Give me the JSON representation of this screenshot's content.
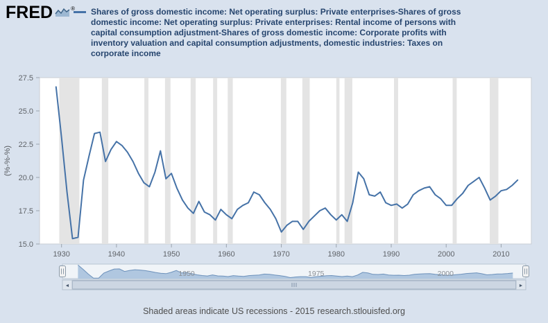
{
  "header": {
    "logo_text": "FRED",
    "registered_symbol": "®"
  },
  "legend": {
    "marker_color": "#4572a7",
    "label": "Shares of gross domestic income: Net operating surplus: Private enterprises-Shares of gross domestic income: Net operating surplus: Private enterprises: Rental income of persons with capital consumption adjustment-Shares of gross domestic income: Corporate profits with inventory valuation and capital consumption adjustments, domestic industries: Taxes on corporate income"
  },
  "chart_data": {
    "type": "line",
    "title": "Shares of gross domestic income: Net operating surplus: Private enterprises-Shares of gross domestic income: Net operating surplus: Private enterprises: Rental income of persons with capital consumption adjustment-Shares of gross domestic income: Corporate profits with inventory valuation and capital consumption adjustments, domestic industries: Taxes on corporate income",
    "xlabel": "",
    "ylabel": "(%-%-%)",
    "x_start": 1929,
    "x_end": 2013,
    "x_step": 1,
    "values": [
      26.8,
      23.0,
      18.9,
      15.4,
      15.5,
      19.8,
      21.6,
      23.3,
      23.4,
      21.2,
      22.1,
      22.7,
      22.4,
      21.9,
      21.2,
      20.3,
      19.6,
      19.3,
      20.4,
      22.0,
      19.9,
      20.3,
      19.2,
      18.3,
      17.7,
      17.3,
      18.2,
      17.4,
      17.2,
      16.8,
      17.6,
      17.2,
      16.9,
      17.6,
      17.9,
      18.1,
      18.9,
      18.7,
      18.1,
      17.6,
      16.9,
      15.9,
      16.4,
      16.7,
      16.7,
      16.1,
      16.7,
      17.1,
      17.5,
      17.7,
      17.2,
      16.8,
      17.2,
      16.7,
      18.1,
      20.4,
      19.9,
      18.7,
      18.6,
      18.9,
      18.1,
      17.9,
      18.0,
      17.7,
      18.0,
      18.7,
      19.0,
      19.2,
      19.3,
      18.7,
      18.4,
      17.9,
      17.9,
      18.4,
      18.8,
      19.4,
      19.7,
      20.0,
      19.2,
      18.3,
      18.6,
      19.0,
      19.1,
      19.4,
      19.8
    ],
    "ylim": [
      15.0,
      27.5
    ],
    "xlim": [
      1926,
      2015.5
    ],
    "y_ticks": [
      15.0,
      17.5,
      20.0,
      22.5,
      25.0,
      27.5
    ],
    "x_ticks": [
      1930,
      1940,
      1950,
      1960,
      1970,
      1980,
      1990,
      2000,
      2010
    ],
    "grid": false,
    "legend_position": "top",
    "line_color": "#4572a7",
    "recession_color": "#e4e4e4",
    "recessions": [
      [
        1929.58,
        1933.25
      ],
      [
        1937.33,
        1938.5
      ],
      [
        1945.08,
        1945.83
      ],
      [
        1948.83,
        1949.83
      ],
      [
        1953.5,
        1954.42
      ],
      [
        1957.58,
        1958.33
      ],
      [
        1960.25,
        1961.17
      ],
      [
        1969.92,
        1970.92
      ],
      [
        1973.83,
        1975.17
      ],
      [
        1980.0,
        1980.58
      ],
      [
        1981.5,
        1982.92
      ],
      [
        1990.5,
        1991.25
      ],
      [
        2001.17,
        2001.92
      ],
      [
        2007.92,
        2009.5
      ]
    ],
    "navigator": {
      "labels": [
        "1950",
        "1975",
        "2000"
      ],
      "area_fill": "#a9c2dd",
      "left_arrow": "◄",
      "right_arrow": "►"
    }
  },
  "footer": {
    "note": "Shaded areas indicate US recessions - 2015",
    "link": "research.stlouisfed.org"
  }
}
